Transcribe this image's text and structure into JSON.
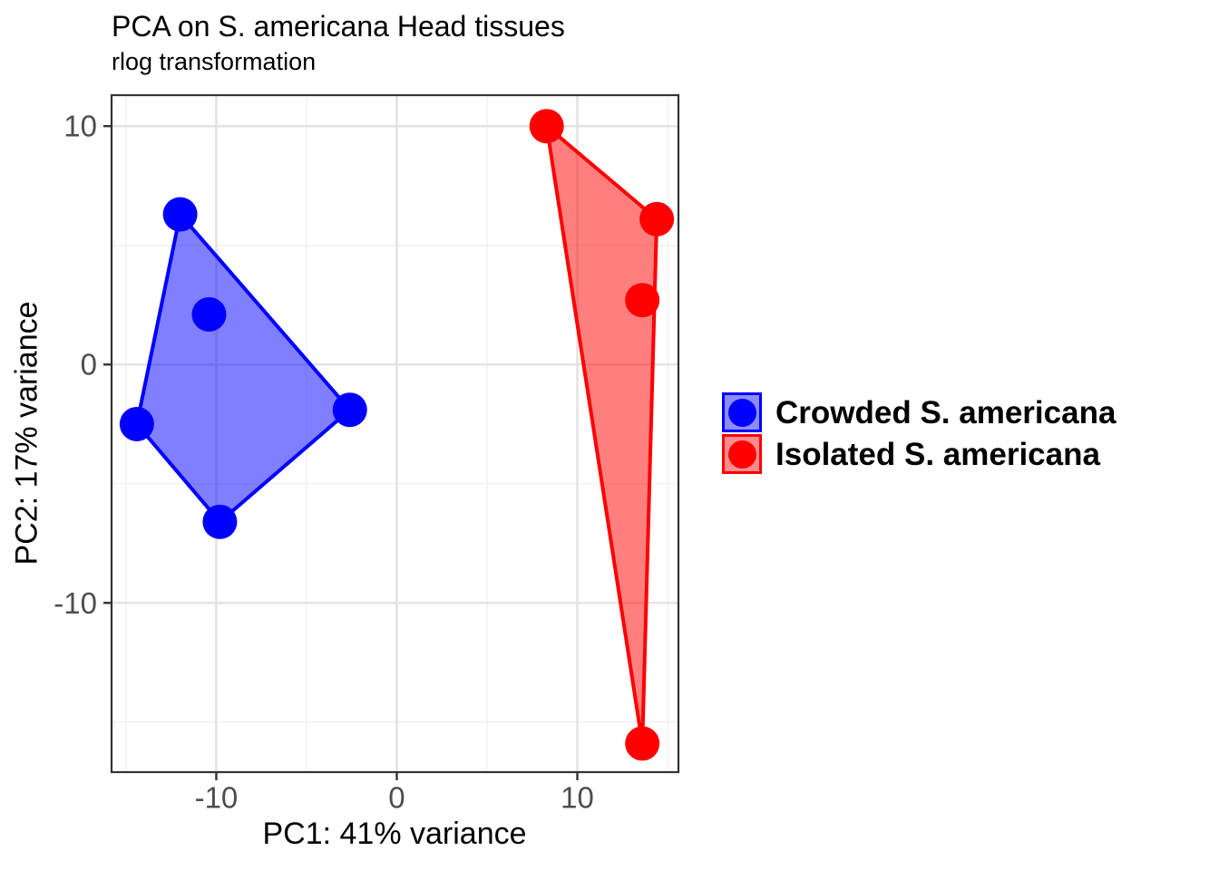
{
  "chart_data": {
    "type": "scatter",
    "title": "PCA on S. americana Head tissues",
    "subtitle": "rlog transformation",
    "xlabel": "PC1: 41% variance",
    "ylabel": "PC2: 17% variance",
    "xlim": [
      -15.8,
      15.6
    ],
    "ylim": [
      -17.1,
      11.3
    ],
    "x_major_ticks": [
      -10,
      0,
      10
    ],
    "y_major_ticks": [
      -10,
      0,
      10
    ],
    "x_minor_ticks": [
      -15,
      -5,
      5,
      15
    ],
    "y_minor_ticks": [
      -15,
      -5,
      5
    ],
    "grid": "major and minor, light gray, white panel, dark panel border (ggplot theme_bw)",
    "legend_position": "right-center",
    "fill_opacity": 0.5,
    "series": [
      {
        "name": "Crowded S. americana",
        "color": "#0000FF",
        "points": [
          [
            -12.0,
            6.3
          ],
          [
            -10.4,
            2.1
          ],
          [
            -14.4,
            -2.5
          ],
          [
            -9.8,
            -6.6
          ],
          [
            -2.6,
            -1.9
          ]
        ],
        "hull": [
          [
            -12.0,
            6.3
          ],
          [
            -2.6,
            -1.9
          ],
          [
            -9.8,
            -6.6
          ],
          [
            -14.4,
            -2.5
          ]
        ]
      },
      {
        "name": "Isolated S. americana",
        "color": "#FF0000",
        "points": [
          [
            8.3,
            10.0
          ],
          [
            14.4,
            6.1
          ],
          [
            13.6,
            2.7
          ],
          [
            13.6,
            -15.9
          ]
        ],
        "hull": [
          [
            8.3,
            10.0
          ],
          [
            14.4,
            6.1
          ],
          [
            13.6,
            -15.9
          ]
        ]
      }
    ]
  },
  "legend": {
    "items": [
      {
        "label": "Crowded S. americana",
        "color": "#0000FF"
      },
      {
        "label": "Isolated S. americana",
        "color": "#FF0000"
      }
    ]
  },
  "colors": {
    "background": "#FFFFFF",
    "grid_major": "#E3E3E3",
    "grid_minor": "#EFEFEF",
    "panel_border": "#333333",
    "tick_mark": "#333333",
    "tick_label": "#4D4D4D",
    "text": "#000000"
  }
}
